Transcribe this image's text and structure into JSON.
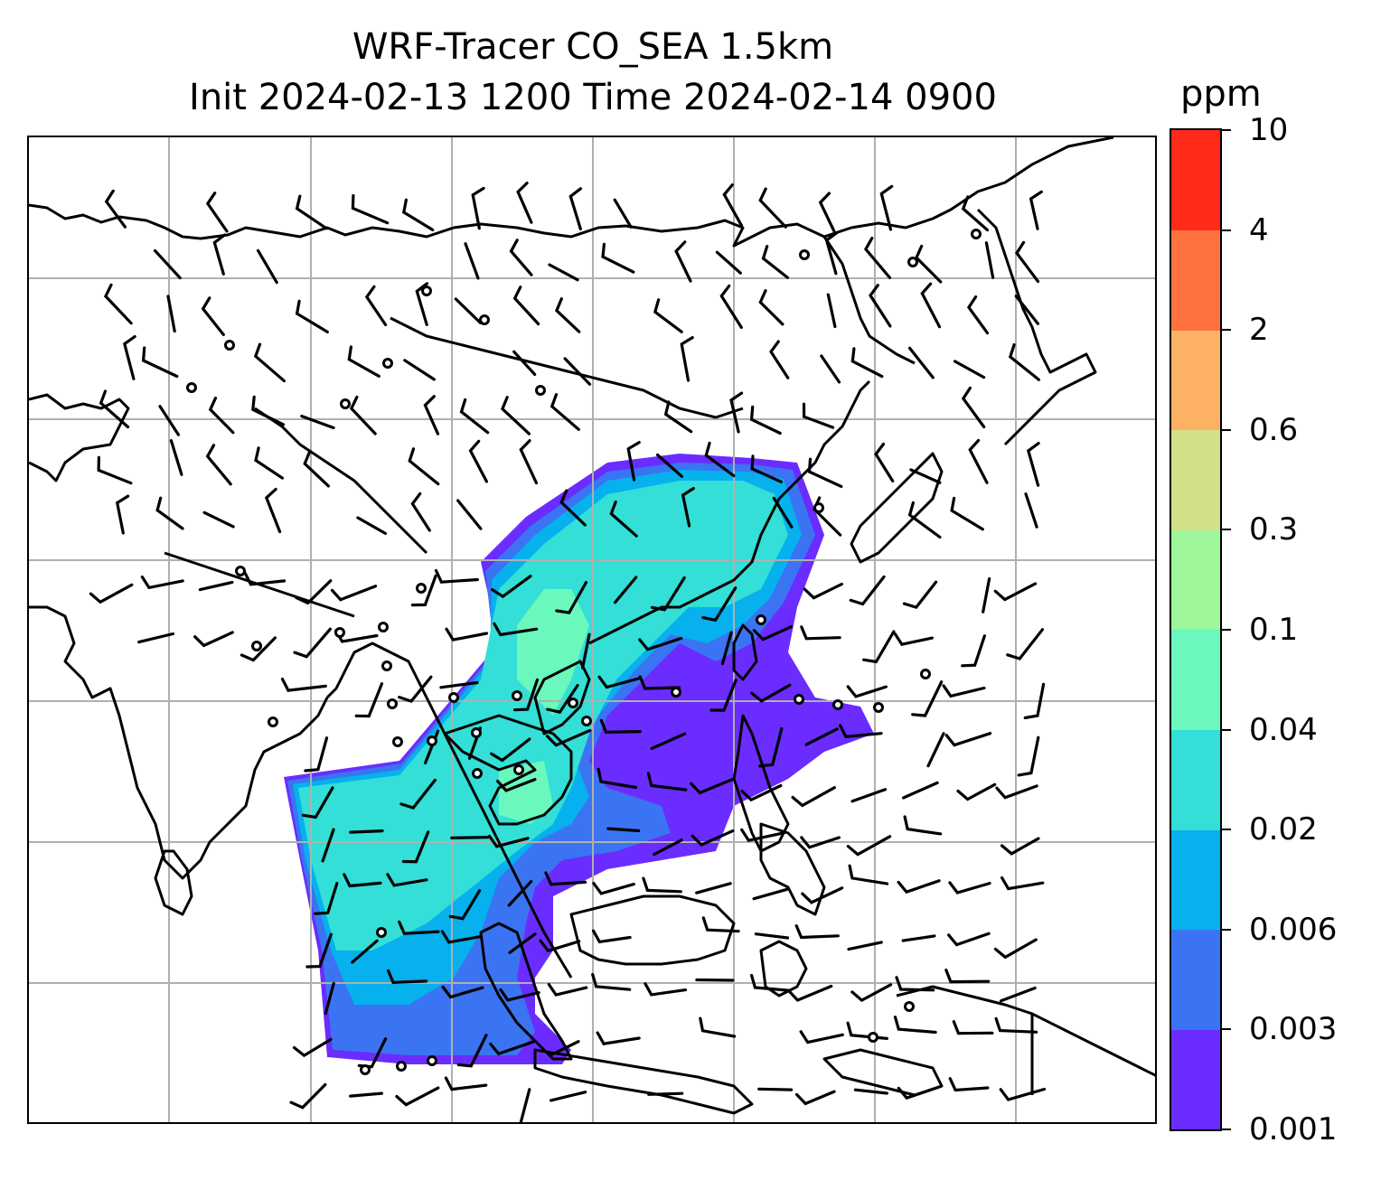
{
  "title": {
    "line1": "WRF-Tracer CO_SEA 1.5km",
    "line2": "Init 2024-02-13 1200 Time 2024-02-14 0900"
  },
  "colorbar": {
    "unit": "ppm",
    "levels": [
      "0.001",
      "0.003",
      "0.006",
      "0.02",
      "0.04",
      "0.1",
      "0.3",
      "0.6",
      "2",
      "4",
      "10"
    ],
    "colors": [
      "#6a2cff",
      "#3a74f2",
      "#06b1ee",
      "#33dfd6",
      "#6af8bd",
      "#9ff79c",
      "#d2e188",
      "#fdb162",
      "#ff7240",
      "#ff2a1a"
    ]
  },
  "map": {
    "type": "map",
    "field": "CO tracer concentration at 1.5 km with wind barbs",
    "gridlines": true,
    "features": [
      "coastlines",
      "country borders",
      "wind barbs",
      "calm-wind circles"
    ]
  }
}
